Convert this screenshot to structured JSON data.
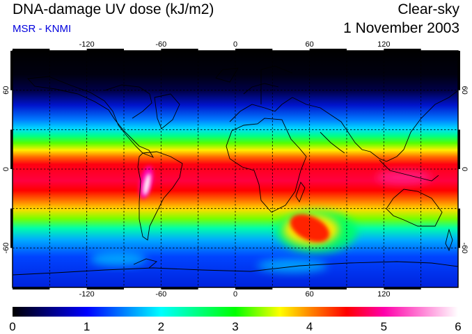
{
  "header": {
    "title": "DNA-damage UV dose (kJ/m2)",
    "subtitle": "MSR - KNMI",
    "condition": "Clear-sky",
    "date": "1 November 2003"
  },
  "map": {
    "projection": "equirectangular",
    "lon_range": [
      -180,
      180
    ],
    "lat_range": [
      -90,
      90
    ],
    "grid_spacing_deg": 30,
    "gridlines": "dashed",
    "lon_ticks": [
      -120,
      -60,
      0,
      60,
      120
    ],
    "lat_ticks": [
      60,
      0,
      -60
    ],
    "lon_tick_labels": [
      "-120",
      "-60",
      "0",
      "60",
      "120"
    ],
    "lat_tick_labels": [
      "60",
      "0",
      "-60"
    ]
  },
  "colorbar": {
    "min": 0,
    "max": 6,
    "tick_labels": [
      "0",
      "1",
      "2",
      "3",
      "4",
      "5",
      "6"
    ],
    "colors": [
      "#000000",
      "#0000ff",
      "#00ffff",
      "#00ff00",
      "#ffff00",
      "#ff0000",
      "#ff00aa",
      "#ffffff"
    ]
  }
}
